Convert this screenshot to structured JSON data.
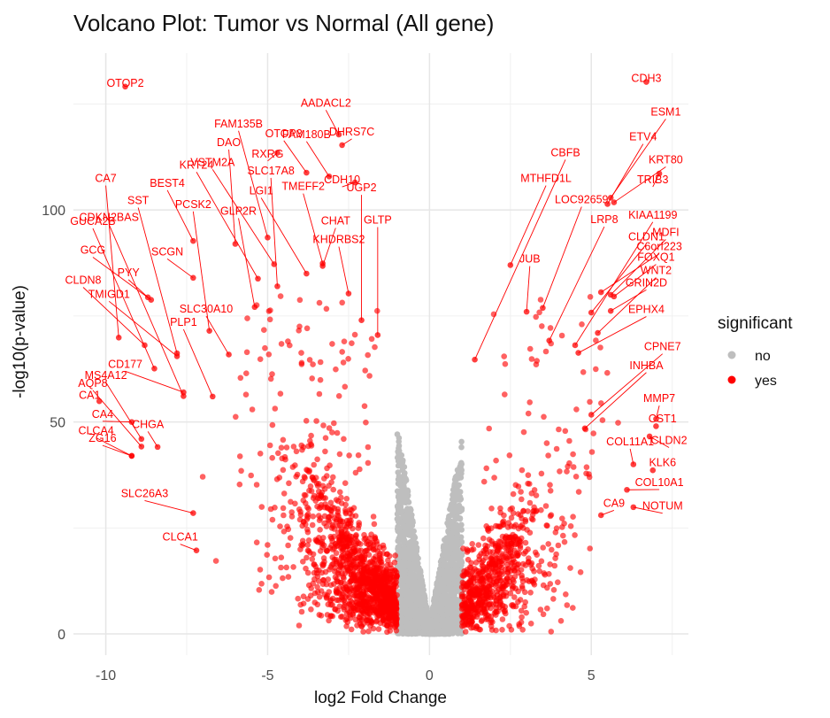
{
  "chart_data": {
    "type": "scatter",
    "title": "Volcano Plot: Tumor vs Normal (All gene)",
    "xlabel": "log2 Fold Change",
    "ylabel": "-log10(p-value)",
    "xlim": [
      -11.0,
      8.0
    ],
    "ylim": [
      -5,
      137
    ],
    "xticks": [
      -10,
      -5,
      0,
      5
    ],
    "yticks": [
      0,
      50,
      100
    ],
    "grid": true,
    "legend": {
      "title": "significant",
      "position": "right",
      "entries": [
        {
          "label": "no",
          "color": "#bebebe"
        },
        {
          "label": "yes",
          "color": "#ff0000"
        }
      ]
    },
    "colors": {
      "no": "#bebebe",
      "yes": "#ff0000"
    },
    "fold_change_threshold": 1,
    "labeled_genes": [
      {
        "gene": "OTOP2",
        "x": -9.4,
        "y": 129.1,
        "lx": -9.4,
        "ly": 129.1
      },
      {
        "gene": "CDH3",
        "x": 6.7,
        "y": 130.2,
        "lx": 6.7,
        "ly": 130.2
      },
      {
        "gene": "ESM1",
        "x": 5.6,
        "y": 102.9,
        "lx": 7.3,
        "ly": 122.3
      },
      {
        "gene": "AADACL2",
        "x": -2.8,
        "y": 117.8,
        "lx": -3.2,
        "ly": 124.4
      },
      {
        "gene": "FAM135B",
        "x": -5.0,
        "y": 93.5,
        "lx": -5.9,
        "ly": 119.5
      },
      {
        "gene": "OTOP3",
        "x": -3.8,
        "y": 108.8,
        "lx": -4.5,
        "ly": 117.2
      },
      {
        "gene": "FAM180B",
        "x": -3.1,
        "y": 107.9,
        "lx": -3.8,
        "ly": 117.0
      },
      {
        "gene": "DHRS7C",
        "x": -2.7,
        "y": 115.3,
        "lx": -2.4,
        "ly": 117.6
      },
      {
        "gene": "DAO",
        "x": -6.0,
        "y": 92.0,
        "lx": -6.2,
        "ly": 115.1
      },
      {
        "gene": "RXRG",
        "x": -4.7,
        "y": 113.5,
        "lx": -5.0,
        "ly": 112.4
      },
      {
        "gene": "CBFB",
        "x": 1.4,
        "y": 64.7,
        "lx": 4.2,
        "ly": 112.7
      },
      {
        "gene": "ETV4",
        "x": 5.5,
        "y": 101.4,
        "lx": 6.6,
        "ly": 116.4
      },
      {
        "gene": "KRT80",
        "x": 5.7,
        "y": 101.8,
        "lx": 7.3,
        "ly": 111.0
      },
      {
        "gene": "VSTM2A",
        "x": -4.8,
        "y": 87.2,
        "lx": -6.7,
        "ly": 110.4
      },
      {
        "gene": "KRT24",
        "x": -5.3,
        "y": 83.8,
        "lx": -7.2,
        "ly": 109.8
      },
      {
        "gene": "SLC17A8",
        "x": -4.7,
        "y": 82.0,
        "lx": -4.9,
        "ly": 108.4
      },
      {
        "gene": "CDH10",
        "x": -2.3,
        "y": 106.5,
        "lx": -2.7,
        "ly": 106.3
      },
      {
        "gene": "MTHFD1L",
        "x": 2.5,
        "y": 87.0,
        "lx": 3.6,
        "ly": 106.6
      },
      {
        "gene": "TRIB3",
        "x": 7.1,
        "y": 108.6,
        "lx": 6.9,
        "ly": 106.3
      },
      {
        "gene": "CA7",
        "x": -9.6,
        "y": 69.9,
        "lx": -10.0,
        "ly": 106.6
      },
      {
        "gene": "BEST4",
        "x": -7.3,
        "y": 92.7,
        "lx": -8.1,
        "ly": 105.5
      },
      {
        "gene": "TMEFF2",
        "x": -3.3,
        "y": 87.4,
        "lx": -3.9,
        "ly": 104.7
      },
      {
        "gene": "UGP2",
        "x": -2.1,
        "y": 74.0,
        "lx": -2.1,
        "ly": 104.4
      },
      {
        "gene": "LGI1",
        "x": -3.8,
        "y": 85.0,
        "lx": -5.2,
        "ly": 103.7
      },
      {
        "gene": "LOC92659",
        "x": 3.5,
        "y": 76.9,
        "lx": 4.7,
        "ly": 101.6
      },
      {
        "gene": "SST",
        "x": -7.8,
        "y": 66.2,
        "lx": -9.0,
        "ly": 101.4
      },
      {
        "gene": "PCSK2",
        "x": -6.8,
        "y": 71.5,
        "lx": -7.3,
        "ly": 100.5
      },
      {
        "gene": "GLP2R",
        "x": -5.4,
        "y": 77.1,
        "lx": -5.9,
        "ly": 98.9
      },
      {
        "gene": "KIAA1199",
        "x": 4.5,
        "y": 68.1,
        "lx": 6.9,
        "ly": 98.0
      },
      {
        "gene": "CDKN2BAS",
        "x": -7.6,
        "y": 56.1,
        "lx": -9.9,
        "ly": 97.4
      },
      {
        "gene": "GUCA2B",
        "x": -8.5,
        "y": 62.6,
        "lx": -10.4,
        "ly": 96.5
      },
      {
        "gene": "LRP8",
        "x": 3.7,
        "y": 69.2,
        "lx": 5.4,
        "ly": 96.9
      },
      {
        "gene": "CHAT",
        "x": -3.3,
        "y": 86.8,
        "lx": -2.9,
        "ly": 96.6
      },
      {
        "gene": "GLTP",
        "x": -1.6,
        "y": 70.5,
        "lx": -1.6,
        "ly": 96.8
      },
      {
        "gene": "MDFI",
        "x": 5.6,
        "y": 80.0,
        "lx": 7.3,
        "ly": 93.9
      },
      {
        "gene": "CLDN1",
        "x": 5.0,
        "y": 75.8,
        "lx": 6.7,
        "ly": 92.8
      },
      {
        "gene": "KHDRBS2",
        "x": -2.5,
        "y": 80.3,
        "lx": -2.8,
        "ly": 92.2
      },
      {
        "gene": "C6orf223",
        "x": 5.3,
        "y": 80.6,
        "lx": 7.1,
        "ly": 90.5
      },
      {
        "gene": "GCG",
        "x": -8.6,
        "y": 78.8,
        "lx": -10.4,
        "ly": 89.7
      },
      {
        "gene": "SCGN",
        "x": -7.3,
        "y": 84.0,
        "lx": -8.1,
        "ly": 89.3
      },
      {
        "gene": "FOXQ1",
        "x": 5.7,
        "y": 79.6,
        "lx": 7.0,
        "ly": 88.0
      },
      {
        "gene": "JUB",
        "x": 3.0,
        "y": 76.0,
        "lx": 3.1,
        "ly": 87.6
      },
      {
        "gene": "WNT2",
        "x": 5.2,
        "y": 71.0,
        "lx": 7.0,
        "ly": 84.9
      },
      {
        "gene": "PYY",
        "x": -8.7,
        "y": 79.4,
        "lx": -9.3,
        "ly": 84.4
      },
      {
        "gene": "CLDN8",
        "x": -8.8,
        "y": 68.1,
        "lx": -10.7,
        "ly": 82.6
      },
      {
        "gene": "GRIN2D",
        "x": 5.6,
        "y": 76.2,
        "lx": 6.7,
        "ly": 82.0
      },
      {
        "gene": "TMIGD1",
        "x": -7.8,
        "y": 65.5,
        "lx": -9.9,
        "ly": 79.3
      },
      {
        "gene": "SLC30A10",
        "x": -6.2,
        "y": 65.9,
        "lx": -6.9,
        "ly": 75.8
      },
      {
        "gene": "EPHX4",
        "x": 4.6,
        "y": 66.3,
        "lx": 6.7,
        "ly": 75.7
      },
      {
        "gene": "PLP1",
        "x": -6.7,
        "y": 56.0,
        "lx": -7.6,
        "ly": 72.7
      },
      {
        "gene": "CPNE7",
        "x": 5.0,
        "y": 51.7,
        "lx": 7.2,
        "ly": 66.9
      },
      {
        "gene": "CD177",
        "x": -7.6,
        "y": 57.0,
        "lx": -9.4,
        "ly": 62.8
      },
      {
        "gene": "INHBA",
        "x": 4.8,
        "y": 48.5,
        "lx": 6.7,
        "ly": 62.5
      },
      {
        "gene": "MS4A12",
        "x": -8.9,
        "y": 46.0,
        "lx": -10.0,
        "ly": 60.2
      },
      {
        "gene": "AQP8",
        "x": -8.9,
        "y": 44.2,
        "lx": -10.4,
        "ly": 58.3
      },
      {
        "gene": "CA1",
        "x": -10.2,
        "y": 54.9,
        "lx": -10.5,
        "ly": 55.5
      },
      {
        "gene": "MMP7",
        "x": 7.0,
        "y": 50.7,
        "lx": 7.1,
        "ly": 54.7
      },
      {
        "gene": "CA4",
        "x": -9.2,
        "y": 50.0,
        "lx": -10.1,
        "ly": 51.0
      },
      {
        "gene": "CHGA",
        "x": -8.4,
        "y": 44.1,
        "lx": -8.7,
        "ly": 48.6
      },
      {
        "gene": "CST1",
        "x": 7.0,
        "y": 49.0,
        "lx": 7.2,
        "ly": 49.9
      },
      {
        "gene": "CLCA4",
        "x": -9.2,
        "y": 42.0,
        "lx": -10.3,
        "ly": 47.1
      },
      {
        "gene": "ZG16",
        "x": -9.2,
        "y": 42.0,
        "lx": -10.1,
        "ly": 45.3
      },
      {
        "gene": "CLDN2",
        "x": 6.8,
        "y": 46.6,
        "lx": 7.4,
        "ly": 44.8
      },
      {
        "gene": "COL11A1",
        "x": 6.3,
        "y": 40.0,
        "lx": 6.2,
        "ly": 44.5
      },
      {
        "gene": "KLK6",
        "x": 6.9,
        "y": 38.6,
        "lx": 7.2,
        "ly": 39.6
      },
      {
        "gene": "COL10A1",
        "x": 6.1,
        "y": 34.0,
        "lx": 7.1,
        "ly": 34.9
      },
      {
        "gene": "SLC26A3",
        "x": -7.3,
        "y": 28.5,
        "lx": -8.8,
        "ly": 32.3
      },
      {
        "gene": "CA9",
        "x": 5.3,
        "y": 28.0,
        "lx": 5.7,
        "ly": 30.0
      },
      {
        "gene": "NOTUM",
        "x": 6.3,
        "y": 29.9,
        "lx": 7.2,
        "ly": 29.3
      },
      {
        "gene": "CLCA1",
        "x": -7.2,
        "y": 19.7,
        "lx": -7.7,
        "ly": 22.0
      }
    ],
    "background_points_note_ref": "significant"
  }
}
